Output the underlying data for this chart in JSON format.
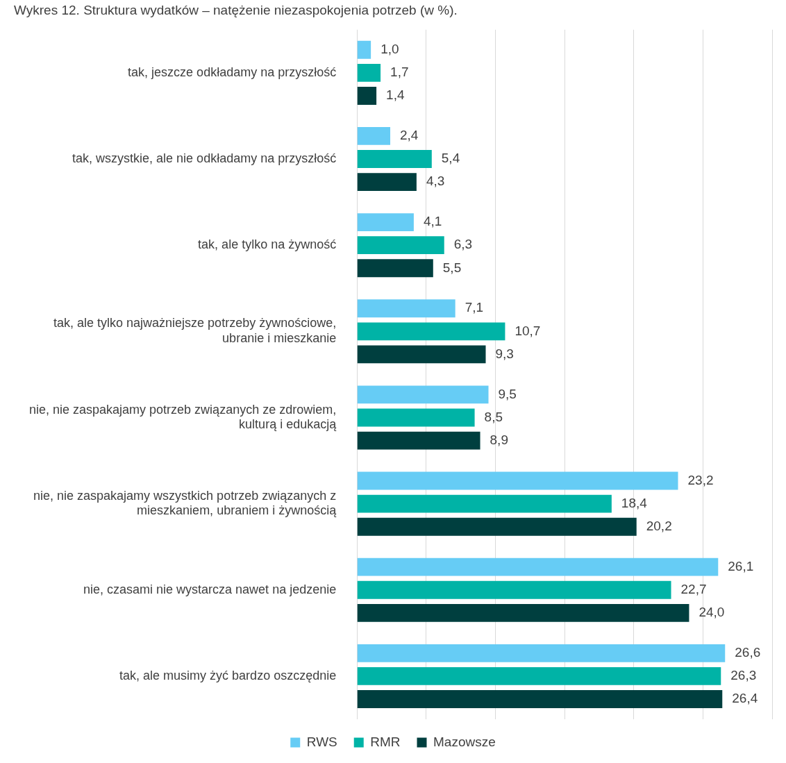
{
  "chart_data": {
    "type": "bar",
    "orientation": "horizontal",
    "title": "Wykres 12. Struktura wydatków – natężenie niezaspokojenia potrzeb (w %).",
    "categories": [
      "tak, jeszcze odkładamy na przyszłość",
      "tak, wszystkie, ale nie odkładamy na przyszłość",
      "tak, ale tylko na żywność",
      "tak, ale tylko najważniejsze potrzeby żywnościowe, ubranie i mieszkanie",
      "nie, nie zaspakajamy potrzeb związanych ze zdrowiem, kulturą i edukacją",
      "nie, nie zaspakajamy wszystkich potrzeb związanych z mieszkaniem, ubraniem i żywnością",
      "nie, czasami nie wystarcza nawet na jedzenie",
      "tak, ale musimy żyć bardzo oszczędnie"
    ],
    "series": [
      {
        "name": "RWS",
        "color": "#66ccf5",
        "values": [
          1.0,
          2.4,
          4.1,
          7.1,
          9.5,
          23.2,
          26.1,
          26.6
        ],
        "value_labels": [
          "1,0",
          "2,4",
          "4,1",
          "7,1",
          "9,5",
          "23,2",
          "26,1",
          "26,6"
        ]
      },
      {
        "name": "RMR",
        "color": "#00b3a6",
        "values": [
          1.7,
          5.4,
          6.3,
          10.7,
          8.5,
          18.4,
          22.7,
          26.3
        ],
        "value_labels": [
          "1,7",
          "5,4",
          "6,3",
          "10,7",
          "8,5",
          "18,4",
          "22,7",
          "26,3"
        ]
      },
      {
        "name": "Mazowsze",
        "color": "#003f3f",
        "values": [
          1.4,
          4.3,
          5.5,
          9.3,
          8.9,
          20.2,
          24.0,
          26.4
        ],
        "value_labels": [
          "1,4",
          "4,3",
          "5,5",
          "9,3",
          "8,9",
          "20,2",
          "24,0",
          "26,4"
        ]
      }
    ],
    "xlim": [
      0,
      30
    ],
    "xticks": [
      0,
      5,
      10,
      15,
      20,
      25,
      30
    ],
    "tick_labels": "y",
    "grid": "x",
    "legend": "bottom"
  }
}
